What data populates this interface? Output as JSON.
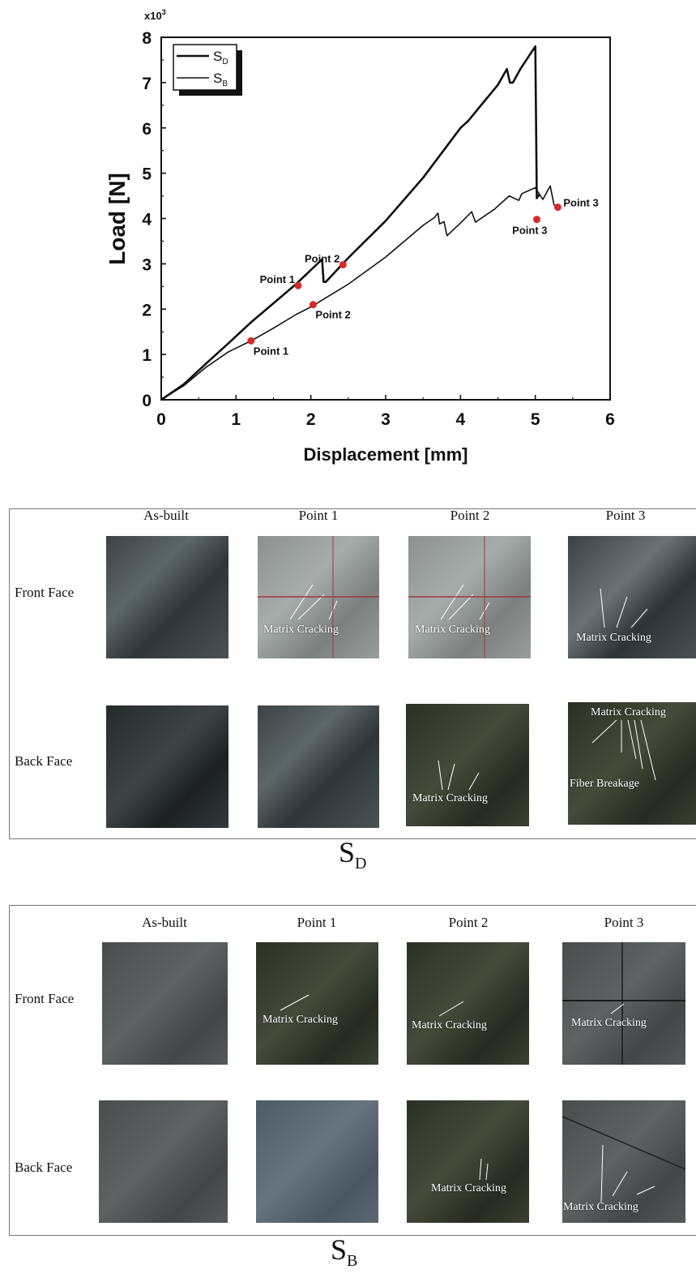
{
  "chart_data": {
    "type": "line",
    "xlabel": "Displacement [mm]",
    "ylabel": "Load [N]",
    "y_multiplier_label": "x10",
    "y_multiplier_exp": "3",
    "xlim": [
      0,
      6
    ],
    "ylim": [
      0,
      8
    ],
    "xticks": [
      "0",
      "1",
      "2",
      "3",
      "4",
      "5",
      "6"
    ],
    "yticks": [
      "0",
      "1",
      "2",
      "3",
      "4",
      "5",
      "6",
      "7",
      "8"
    ],
    "grid": false,
    "legend_position": "top-left",
    "series": [
      {
        "name": "S",
        "subscript": "D",
        "stroke": 2.6,
        "x": [
          0,
          0.3,
          0.6,
          0.9,
          1.2,
          1.5,
          1.8,
          2.15,
          2.17,
          2.2,
          2.5,
          3.0,
          3.5,
          4.0,
          4.1,
          4.3,
          4.5,
          4.62,
          4.66,
          4.7,
          4.8,
          5.0,
          5.02,
          5.06
        ],
        "y": [
          0,
          0.34,
          0.8,
          1.25,
          1.71,
          2.13,
          2.55,
          3.1,
          2.6,
          2.6,
          3.13,
          3.95,
          4.9,
          6.0,
          6.15,
          6.55,
          6.95,
          7.3,
          7.0,
          7.0,
          7.3,
          7.8,
          4.45,
          4.55
        ]
      },
      {
        "name": "S",
        "subscript": "B",
        "stroke": 1.6,
        "x": [
          0,
          0.3,
          0.6,
          0.9,
          1.2,
          1.5,
          1.8,
          2.0,
          2.2,
          2.5,
          3.0,
          3.5,
          3.65,
          3.7,
          3.72,
          3.78,
          3.82,
          4.0,
          4.15,
          4.2,
          4.45,
          4.65,
          4.78,
          4.82,
          5.0,
          5.1,
          5.2,
          5.25,
          5.3
        ],
        "y": [
          0,
          0.31,
          0.72,
          1.06,
          1.3,
          1.58,
          1.88,
          2.05,
          2.25,
          2.55,
          3.15,
          3.85,
          4.02,
          4.12,
          3.88,
          3.93,
          3.62,
          3.9,
          4.15,
          3.92,
          4.2,
          4.5,
          4.4,
          4.55,
          4.68,
          4.42,
          4.72,
          4.3,
          4.28
        ]
      }
    ],
    "annotations": [
      {
        "text": "Point 1",
        "x": 1.2,
        "y": 1.3,
        "label_side": "right-below"
      },
      {
        "text": "Point 2",
        "x": 2.03,
        "y": 2.1,
        "label_side": "right-below"
      },
      {
        "text": "Point 1",
        "x": 1.83,
        "y": 2.52,
        "label_side": "left-above"
      },
      {
        "text": "Point 2",
        "x": 2.43,
        "y": 2.98,
        "label_side": "left-above"
      },
      {
        "text": "Point 3",
        "x": 5.02,
        "y": 3.98,
        "label_side": "left-below"
      },
      {
        "text": "Point 3",
        "x": 5.3,
        "y": 4.25,
        "label_side": "right"
      }
    ],
    "marker_color": "#d42a2a"
  },
  "panels": [
    {
      "caption": "S",
      "caption_sub": "D",
      "columns": [
        "As-built",
        "Point 1",
        "Point 2",
        "Point 3"
      ],
      "rows": [
        "Front Face",
        "Back Face"
      ],
      "cells": [
        [
          "",
          "Matrix Cracking",
          "Matrix Cracking",
          "Matrix Cracking"
        ],
        [
          "",
          "",
          "Matrix Cracking",
          "Matrix Cracking"
        ]
      ],
      "extra_labels": {
        "back_point3": "Fiber Breakage"
      }
    },
    {
      "caption": "S",
      "caption_sub": "B",
      "columns": [
        "As-built",
        "Point 1",
        "Point 2",
        "Point 3"
      ],
      "rows": [
        "Front Face",
        "Back Face"
      ],
      "cells": [
        [
          "",
          "Matrix Cracking",
          "Matrix Cracking",
          "Matrix Cracking"
        ],
        [
          "",
          "",
          "Matrix Cracking",
          "Matrix Cracking"
        ]
      ]
    }
  ]
}
